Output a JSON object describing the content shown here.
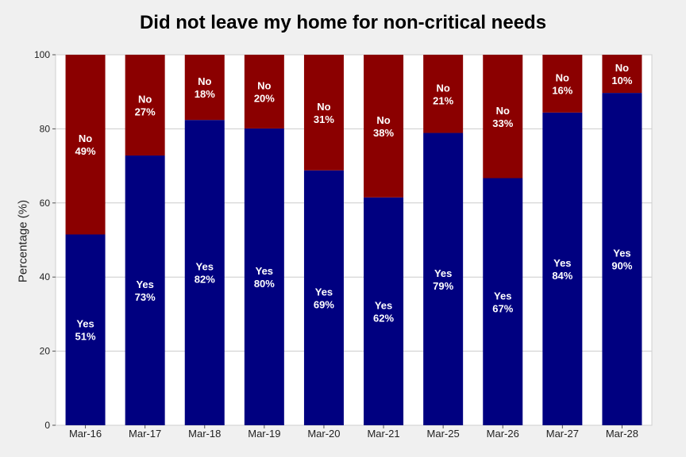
{
  "chart_data": {
    "type": "bar",
    "stacked": true,
    "title": "Did not leave my home for non-critical needs",
    "xlabel": "",
    "ylabel": "Percentage (%)",
    "ylim": [
      0,
      100
    ],
    "yticks": [
      0,
      20,
      40,
      60,
      80,
      100
    ],
    "grid": true,
    "categories": [
      "Mar-16",
      "Mar-17",
      "Mar-18",
      "Mar-19",
      "Mar-20",
      "Mar-21",
      "Mar-25",
      "Mar-26",
      "Mar-27",
      "Mar-28"
    ],
    "series": [
      {
        "name": "Yes",
        "color": "#000080",
        "values": [
          51.5,
          72.8,
          82.4,
          80.1,
          68.8,
          61.5,
          78.9,
          66.7,
          84.4,
          89.7
        ],
        "labels": [
          "51%",
          "73%",
          "82%",
          "80%",
          "69%",
          "62%",
          "79%",
          "67%",
          "84%",
          "90%"
        ]
      },
      {
        "name": "No",
        "color": "#8b0000",
        "values": [
          48.5,
          27.2,
          17.6,
          19.9,
          31.2,
          38.5,
          21.1,
          33.3,
          15.6,
          10.3
        ],
        "labels": [
          "49%",
          "27%",
          "18%",
          "20%",
          "31%",
          "38%",
          "21%",
          "33%",
          "16%",
          "10%"
        ]
      }
    ]
  }
}
